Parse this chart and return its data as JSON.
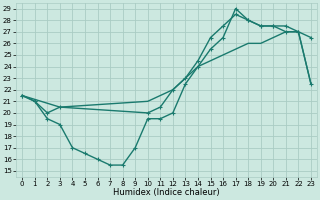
{
  "title": "",
  "xlabel": "Humidex (Indice chaleur)",
  "bg_color": "#cce8e0",
  "grid_color": "#aaccc4",
  "line_color": "#1a7a6e",
  "xlim": [
    -0.5,
    23.5
  ],
  "ylim": [
    14.5,
    29.5
  ],
  "xticks": [
    0,
    1,
    2,
    3,
    4,
    5,
    6,
    7,
    8,
    9,
    10,
    11,
    12,
    13,
    14,
    15,
    16,
    17,
    18,
    19,
    20,
    21,
    22,
    23
  ],
  "yticks": [
    15,
    16,
    17,
    18,
    19,
    20,
    21,
    22,
    23,
    24,
    25,
    26,
    27,
    28,
    29
  ],
  "curve1_x": [
    0,
    1,
    2,
    3,
    4,
    5,
    6,
    7,
    8,
    9,
    10,
    11,
    12,
    13,
    14,
    15,
    16,
    17,
    18,
    19,
    20,
    21,
    22,
    23
  ],
  "curve1_y": [
    21.5,
    21.0,
    19.5,
    19.0,
    17.0,
    16.5,
    16.0,
    15.5,
    15.5,
    17.0,
    19.5,
    19.5,
    20.0,
    22.5,
    24.0,
    25.5,
    26.5,
    29.0,
    28.0,
    27.5,
    27.5,
    27.0,
    27.0,
    26.5
  ],
  "curve2_x": [
    0,
    1,
    2,
    3,
    10,
    11,
    12,
    13,
    14,
    15,
    16,
    17,
    18,
    19,
    20,
    21,
    22,
    23
  ],
  "curve2_y": [
    21.5,
    21.0,
    20.0,
    20.5,
    20.0,
    20.5,
    22.0,
    23.0,
    24.5,
    26.5,
    27.5,
    28.5,
    28.0,
    27.5,
    27.5,
    27.5,
    27.0,
    22.5
  ],
  "curve3_x": [
    0,
    3,
    10,
    11,
    12,
    13,
    14,
    15,
    16,
    17,
    18,
    19,
    20,
    21,
    22,
    23
  ],
  "curve3_y": [
    21.5,
    20.5,
    21.0,
    21.5,
    22.0,
    23.0,
    24.0,
    24.5,
    25.0,
    25.5,
    26.0,
    26.0,
    26.5,
    27.0,
    27.0,
    22.5
  ],
  "markersize": 2.5,
  "linewidth": 1.0,
  "axis_fontsize": 6,
  "tick_fontsize": 5
}
